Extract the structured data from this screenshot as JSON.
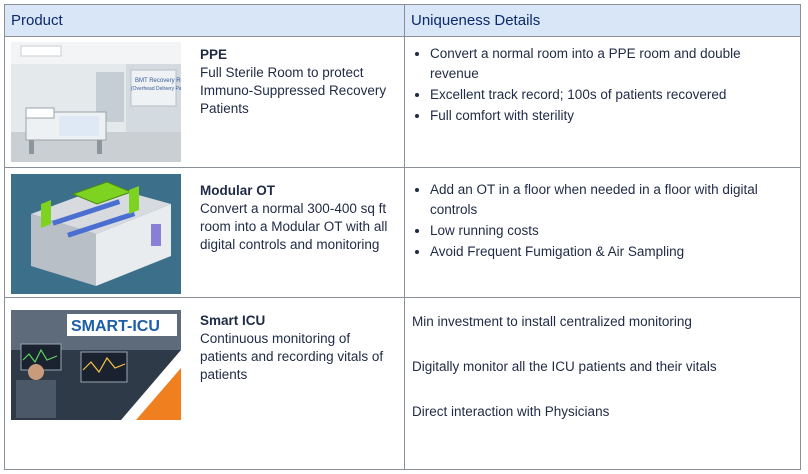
{
  "header": {
    "product": "Product",
    "details": "Uniqueness Details"
  },
  "rows": [
    {
      "name": "PPE",
      "desc": "Full Sterile Room to protect Immuno-Suppressed Recovery Patients",
      "image_caption": "BMT Recovery Room (Overhead Delivery Panel)",
      "details": [
        "Convert a normal room into a PPE room and double revenue",
        "Excellent track record; 100s of patients recovered",
        "Full comfort with sterility"
      ]
    },
    {
      "name": "Modular OT",
      "desc": "Convert a normal 300-400 sq ft room into a Modular OT with all digital controls and monitoring",
      "details": [
        "Add an OT in a floor when needed in a floor with digital controls",
        "Low running costs",
        "Avoid Frequent Fumigation & Air Sampling"
      ]
    },
    {
      "name": "Smart ICU",
      "desc": "Continuous monitoring of patients and recording vitals of patients",
      "image_caption": "SMART-ICU",
      "details": [
        "Min investment to install centralized monitoring",
        "Digitally monitor all the ICU patients and their vitals",
        "Direct interaction with Physicians"
      ]
    }
  ],
  "colors": {
    "header_bg": "#d9e6f7",
    "header_text": "#0b2a6b",
    "border": "#8a8f99"
  }
}
